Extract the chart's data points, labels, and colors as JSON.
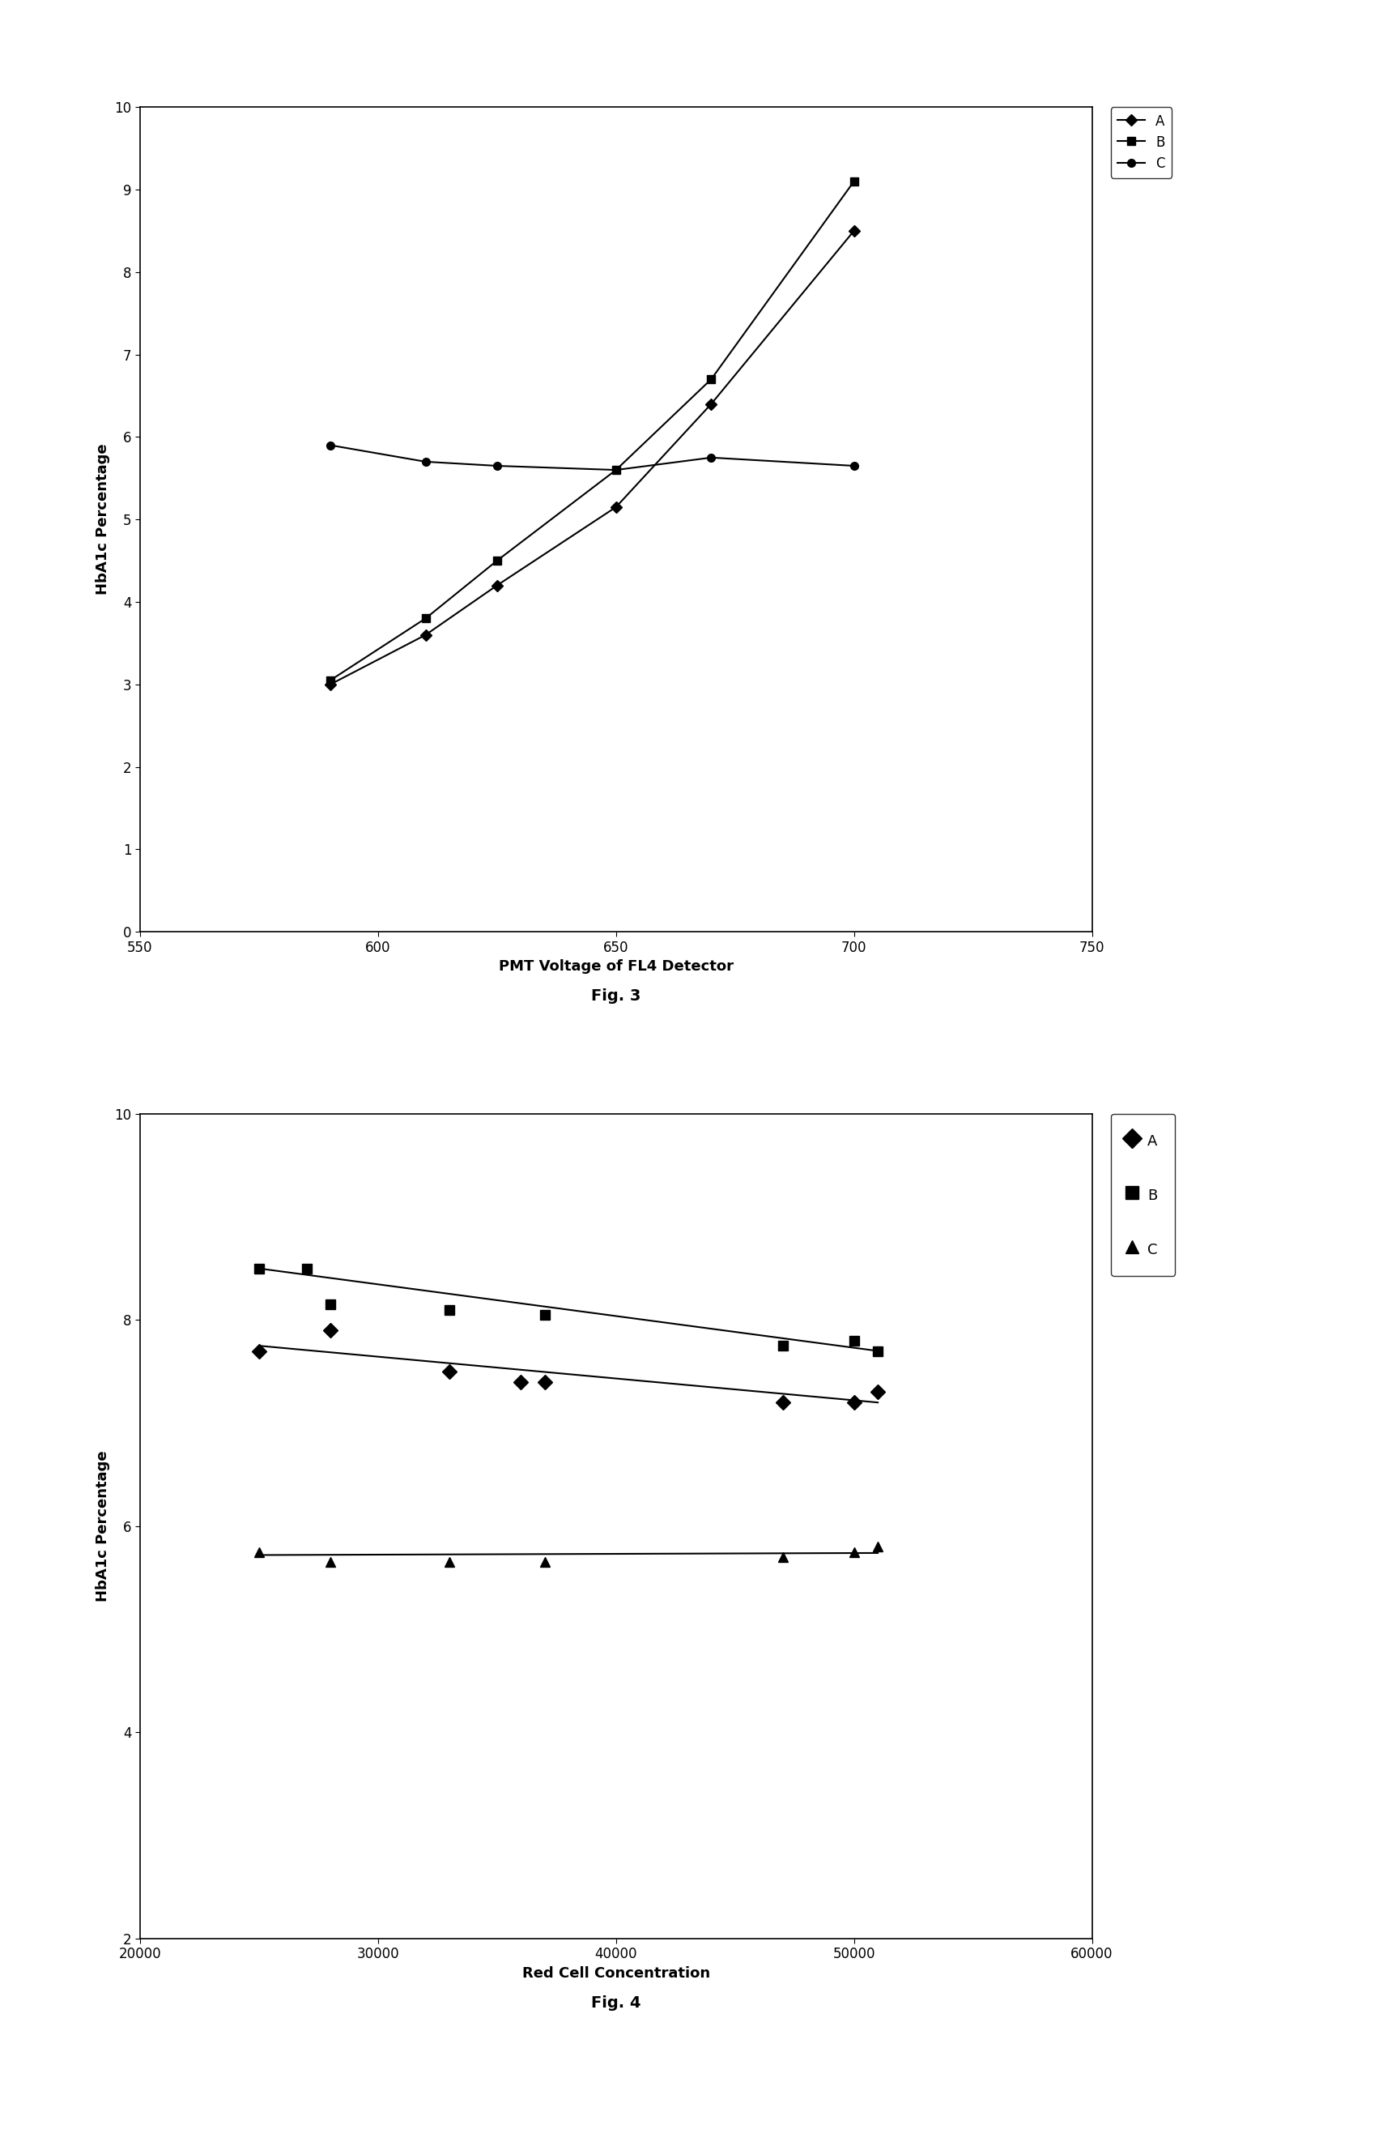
{
  "fig3": {
    "title": "Fig. 3",
    "xlabel": "PMT Voltage of FL4 Detector",
    "ylabel": "HbA1c Percentage",
    "xlim": [
      550,
      750
    ],
    "ylim": [
      0,
      10
    ],
    "xticks": [
      550,
      600,
      650,
      700,
      750
    ],
    "yticks": [
      0,
      1,
      2,
      3,
      4,
      5,
      6,
      7,
      8,
      9,
      10
    ],
    "series_A": {
      "x": [
        590,
        610,
        625,
        650,
        670,
        700
      ],
      "y": [
        3.0,
        3.6,
        4.2,
        5.15,
        6.4,
        8.5
      ],
      "marker": "D",
      "label": "A"
    },
    "series_B": {
      "x": [
        590,
        610,
        625,
        650,
        670,
        700
      ],
      "y": [
        3.05,
        3.8,
        4.5,
        5.6,
        6.7,
        9.1
      ],
      "marker": "s",
      "label": "B"
    },
    "series_C": {
      "x": [
        590,
        610,
        625,
        650,
        670,
        700
      ],
      "y": [
        5.9,
        5.7,
        5.65,
        5.6,
        5.75,
        5.65
      ],
      "marker": "o",
      "label": "C"
    }
  },
  "fig4": {
    "title": "Fig. 4",
    "xlabel": "Red Cell Concentration",
    "ylabel": "HbA1c Percentage",
    "xlim": [
      20000,
      60000
    ],
    "ylim": [
      2,
      10
    ],
    "xticks": [
      20000,
      30000,
      40000,
      50000,
      60000
    ],
    "yticks": [
      2,
      4,
      6,
      8,
      10
    ],
    "series_A": {
      "x": [
        25000,
        28000,
        33000,
        36000,
        37000,
        47000,
        50000,
        51000
      ],
      "y": [
        7.7,
        7.9,
        7.5,
        7.4,
        7.4,
        7.2,
        7.2,
        7.3
      ],
      "marker": "D",
      "label": "A",
      "trendline_x": [
        25000,
        51000
      ],
      "trendline_y": [
        7.75,
        7.2
      ]
    },
    "series_B": {
      "x": [
        25000,
        27000,
        28000,
        33000,
        37000,
        47000,
        50000,
        51000
      ],
      "y": [
        8.5,
        8.5,
        8.15,
        8.1,
        8.05,
        7.75,
        7.8,
        7.7
      ],
      "marker": "s",
      "label": "B",
      "trendline_x": [
        25000,
        51000
      ],
      "trendline_y": [
        8.5,
        7.7
      ]
    },
    "series_C": {
      "x": [
        25000,
        28000,
        33000,
        37000,
        47000,
        50000,
        51000
      ],
      "y": [
        5.75,
        5.65,
        5.65,
        5.65,
        5.7,
        5.75,
        5.8
      ],
      "marker": "^",
      "label": "C",
      "trendline_x": [
        25000,
        51000
      ],
      "trendline_y": [
        5.72,
        5.74
      ]
    }
  },
  "color": "#000000",
  "markersize_fig3": 7,
  "markersize_fig4": 9,
  "linewidth": 1.5,
  "background_color": "#ffffff",
  "fig3_legend": {
    "labels": [
      "A",
      "B",
      "C"
    ],
    "markers": [
      "D",
      "s",
      "o"
    ]
  },
  "fig4_legend": {
    "labels": [
      "A",
      "B",
      "C"
    ],
    "markers": [
      "D",
      "s",
      "^"
    ]
  }
}
